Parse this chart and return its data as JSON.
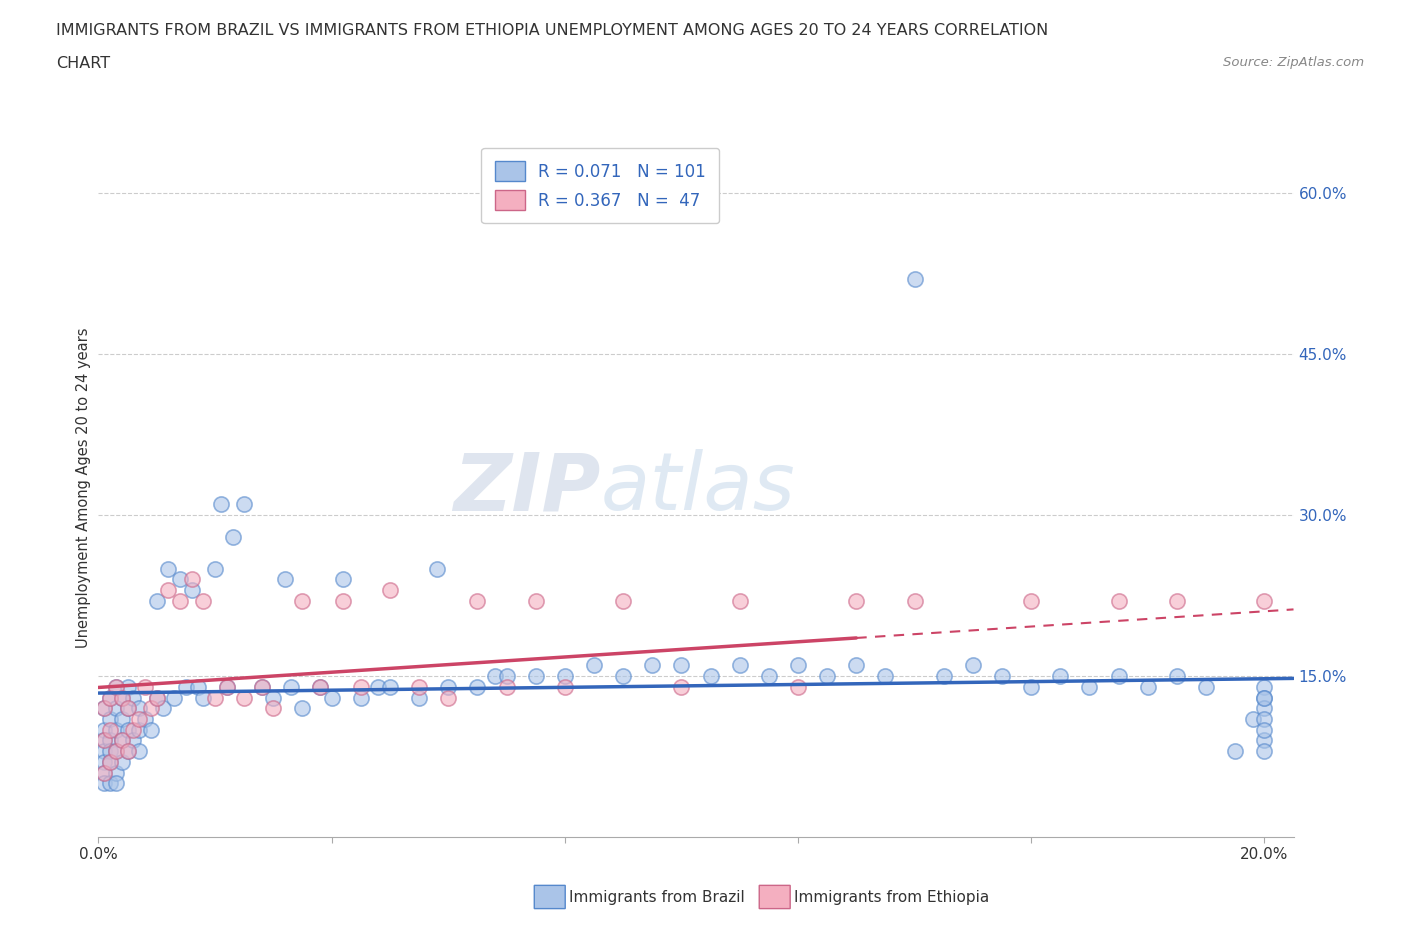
{
  "title_line1": "IMMIGRANTS FROM BRAZIL VS IMMIGRANTS FROM ETHIOPIA UNEMPLOYMENT AMONG AGES 20 TO 24 YEARS CORRELATION",
  "title_line2": "CHART",
  "source": "Source: ZipAtlas.com",
  "ylabel": "Unemployment Among Ages 20 to 24 years",
  "xlim": [
    0.0,
    0.205
  ],
  "ylim": [
    0.0,
    0.65
  ],
  "brazil_color": "#aac4e8",
  "ethiopia_color": "#f4afc0",
  "brazil_edge_color": "#5588cc",
  "ethiopia_edge_color": "#cc6688",
  "trend_brazil_color": "#3366bb",
  "trend_ethiopia_color": "#cc4466",
  "R_brazil": 0.071,
  "N_brazil": 101,
  "R_ethiopia": 0.367,
  "N_ethiopia": 47,
  "watermark_zip": "ZIP",
  "watermark_atlas": "atlas",
  "legend_label_brazil": "Immigrants from Brazil",
  "legend_label_ethiopia": "Immigrants from Ethiopia",
  "brazil_x": [
    0.001,
    0.001,
    0.001,
    0.001,
    0.001,
    0.001,
    0.001,
    0.001,
    0.002,
    0.002,
    0.002,
    0.002,
    0.002,
    0.002,
    0.003,
    0.003,
    0.003,
    0.003,
    0.003,
    0.003,
    0.004,
    0.004,
    0.004,
    0.004,
    0.005,
    0.005,
    0.005,
    0.005,
    0.006,
    0.006,
    0.007,
    0.007,
    0.007,
    0.008,
    0.009,
    0.01,
    0.01,
    0.011,
    0.012,
    0.013,
    0.014,
    0.015,
    0.016,
    0.017,
    0.018,
    0.02,
    0.021,
    0.022,
    0.023,
    0.025,
    0.028,
    0.03,
    0.032,
    0.033,
    0.035,
    0.038,
    0.04,
    0.042,
    0.045,
    0.048,
    0.05,
    0.055,
    0.058,
    0.06,
    0.065,
    0.068,
    0.07,
    0.075,
    0.08,
    0.085,
    0.09,
    0.095,
    0.1,
    0.105,
    0.11,
    0.115,
    0.12,
    0.125,
    0.13,
    0.135,
    0.14,
    0.145,
    0.15,
    0.155,
    0.16,
    0.165,
    0.17,
    0.175,
    0.18,
    0.185,
    0.19,
    0.195,
    0.198,
    0.2,
    0.2,
    0.2,
    0.2,
    0.2,
    0.2,
    0.2,
    0.2
  ],
  "brazil_y": [
    0.12,
    0.1,
    0.09,
    0.08,
    0.07,
    0.06,
    0.05,
    -0.01,
    0.13,
    0.11,
    0.09,
    0.08,
    0.07,
    0.05,
    0.14,
    0.12,
    0.1,
    0.08,
    0.06,
    0.05,
    0.13,
    0.11,
    0.09,
    0.07,
    0.14,
    0.12,
    0.1,
    0.08,
    0.13,
    0.09,
    0.12,
    0.1,
    0.08,
    0.11,
    0.1,
    0.22,
    0.13,
    0.12,
    0.25,
    0.13,
    0.24,
    0.14,
    0.23,
    0.14,
    0.13,
    0.25,
    0.31,
    0.14,
    0.28,
    0.31,
    0.14,
    0.13,
    0.24,
    0.14,
    0.12,
    0.14,
    0.13,
    0.24,
    0.13,
    0.14,
    0.14,
    0.13,
    0.25,
    0.14,
    0.14,
    0.15,
    0.15,
    0.15,
    0.15,
    0.16,
    0.15,
    0.16,
    0.16,
    0.15,
    0.16,
    0.15,
    0.16,
    0.15,
    0.16,
    0.15,
    0.52,
    0.15,
    0.16,
    0.15,
    0.14,
    0.15,
    0.14,
    0.15,
    0.14,
    0.15,
    0.14,
    0.08,
    0.11,
    0.14,
    0.13,
    0.12,
    0.13,
    0.11,
    0.09,
    0.08,
    0.1
  ],
  "ethiopia_x": [
    0.001,
    0.001,
    0.001,
    0.002,
    0.002,
    0.002,
    0.003,
    0.003,
    0.004,
    0.004,
    0.005,
    0.005,
    0.006,
    0.007,
    0.008,
    0.009,
    0.01,
    0.012,
    0.014,
    0.016,
    0.018,
    0.02,
    0.022,
    0.025,
    0.028,
    0.03,
    0.035,
    0.038,
    0.042,
    0.045,
    0.05,
    0.055,
    0.06,
    0.065,
    0.07,
    0.075,
    0.08,
    0.09,
    0.1,
    0.11,
    0.12,
    0.13,
    0.14,
    0.16,
    0.175,
    0.185,
    0.2
  ],
  "ethiopia_y": [
    0.12,
    0.09,
    0.06,
    0.13,
    0.1,
    0.07,
    0.14,
    0.08,
    0.13,
    0.09,
    0.12,
    0.08,
    0.1,
    0.11,
    0.14,
    0.12,
    0.13,
    0.23,
    0.22,
    0.24,
    0.22,
    0.13,
    0.14,
    0.13,
    0.14,
    0.12,
    0.22,
    0.14,
    0.22,
    0.14,
    0.23,
    0.14,
    0.13,
    0.22,
    0.14,
    0.22,
    0.14,
    0.22,
    0.14,
    0.22,
    0.14,
    0.22,
    0.22,
    0.22,
    0.22,
    0.22,
    0.22
  ]
}
